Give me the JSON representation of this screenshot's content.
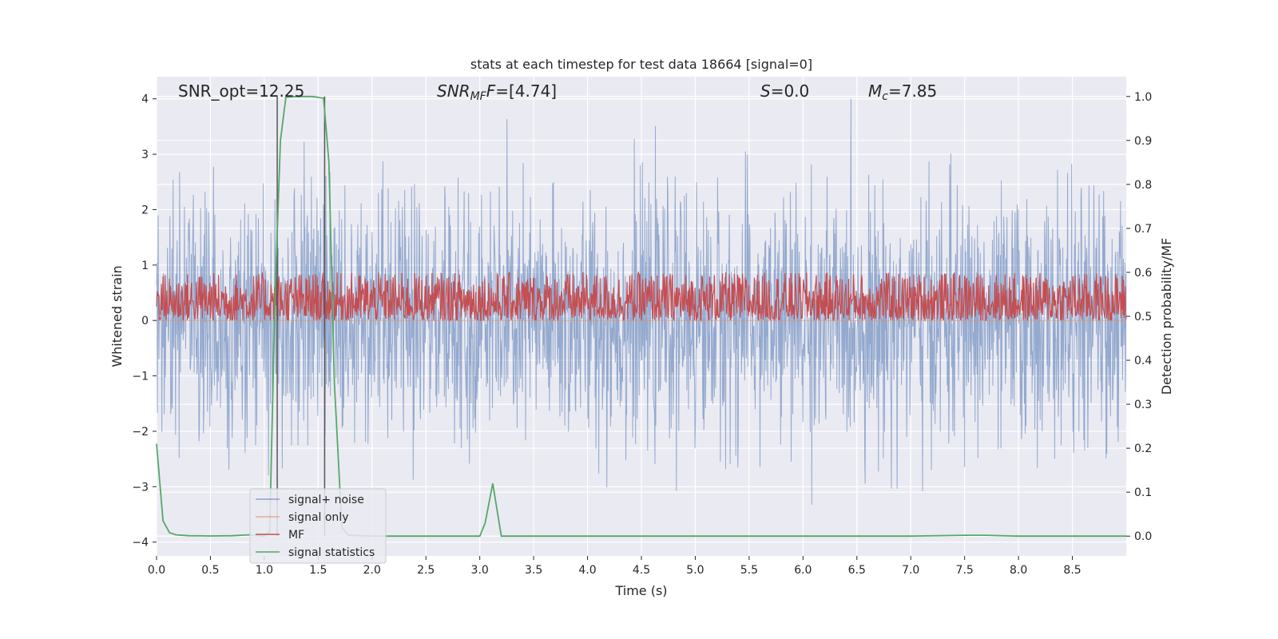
{
  "chart_data": {
    "type": "line",
    "title": "stats at each timestep for test data 18664 [signal=0]",
    "xlabel": "Time (s)",
    "ylabel_left": "Whitened strain",
    "ylabel_right": "Detection probability/MF",
    "xlim": [
      0.0,
      9.0
    ],
    "ylim_left": [
      -4.25,
      4.4
    ],
    "ylim_right": [
      -0.045,
      1.045
    ],
    "xticks": [
      "0.0",
      "0.5",
      "1.0",
      "1.5",
      "2.0",
      "2.5",
      "3.0",
      "3.5",
      "4.0",
      "4.5",
      "5.0",
      "5.5",
      "6.0",
      "6.5",
      "7.0",
      "7.5",
      "8.0",
      "8.5"
    ],
    "yticks_left": [
      "−4",
      "−3",
      "−2",
      "−1",
      "0",
      "1",
      "2",
      "3",
      "4"
    ],
    "yticks_right": [
      "0.0",
      "0.1",
      "0.2",
      "0.3",
      "0.4",
      "0.5",
      "0.6",
      "0.7",
      "0.8",
      "0.9",
      "1.0"
    ],
    "grid": true,
    "legend_placement": "lower-left",
    "annotations": {
      "snr_opt": "SNR_opt=12.25",
      "snr_mf_main": "SNR",
      "snr_mf_sub": "MF",
      "snr_mf_value": "=[4.74]",
      "s_main": "S",
      "s_value": "=0.0",
      "mc_main": "M",
      "mc_sub": "c",
      "mc_value": "=7.85"
    },
    "vertical_lines_x": [
      1.12,
      1.56
    ],
    "series": [
      {
        "name": "signal+ noise",
        "color": "#4c72b0",
        "axis": "left",
        "description_values": {
          "typical_range": [
            -2.5,
            2.5
          ],
          "max": 4.0,
          "min": -3.75
        }
      },
      {
        "name": "signal only",
        "color": "#dd8452",
        "axis": "left",
        "values_constant": 0.0
      },
      {
        "name": "MF",
        "color": "#c44e52",
        "axis": "right",
        "baseline_range": [
          0.49,
          0.6
        ],
        "max": 0.61
      },
      {
        "name": "signal statistics",
        "color": "#55a868",
        "axis": "right",
        "x": [
          0.0,
          0.06,
          0.12,
          0.18,
          0.3,
          0.5,
          0.7,
          0.85,
          1.0,
          1.05,
          1.1,
          1.15,
          1.2,
          1.3,
          1.45,
          1.55,
          1.6,
          1.65,
          1.72,
          1.78,
          2.0,
          2.5,
          3.0,
          3.05,
          3.12,
          3.2,
          3.28,
          3.34,
          3.5,
          4.0,
          5.0,
          6.0,
          7.0,
          7.5,
          7.7,
          8.0,
          9.0
        ],
        "y": [
          0.21,
          0.035,
          0.008,
          0.003,
          0.001,
          0.0005,
          0.001,
          0.003,
          0.0,
          0.01,
          0.55,
          0.9,
          0.998,
          1.0,
          1.0,
          0.996,
          0.85,
          0.35,
          0.02,
          0.002,
          0.0,
          0.0,
          0.0,
          0.03,
          0.12,
          0.0,
          0.0,
          0.0,
          0.0,
          0.0,
          0.0,
          0.0,
          0.0,
          0.002,
          0.002,
          0.0,
          0.0
        ]
      }
    ]
  }
}
